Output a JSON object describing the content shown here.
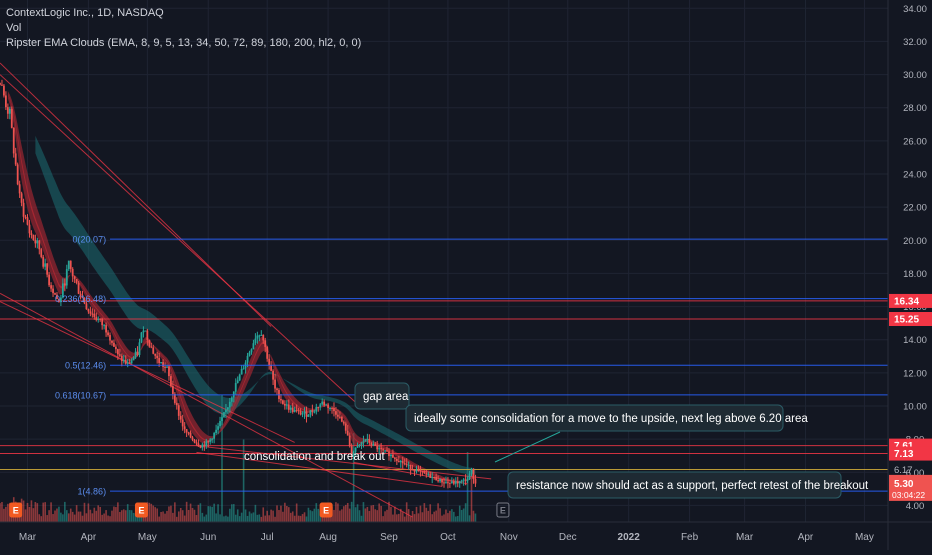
{
  "legend": {
    "symbol_line": "ContextLogic Inc., 1D, NASDAQ",
    "volume_label": "Vol",
    "indicator": "Ripster EMA Clouds (EMA, 8, 9, 5, 13, 34, 50, 72, 89, 180, 200, hl2, 0, 0)"
  },
  "colors": {
    "background": "#131722",
    "grid": "#1f2433",
    "text": "#b2b5be",
    "up": "#26a69a",
    "down": "#ef5350",
    "hline_red": "#f23645",
    "hline_blue": "#2962ff",
    "hline_yellow": "#d9b23a",
    "fib_label": "#5b8def",
    "cloud_fast": "#b22833",
    "cloud_slow": "#1c6e73"
  },
  "chart_data": {
    "type": "candlestick",
    "symbol": "ContextLogic Inc.",
    "interval": "1D",
    "exchange": "NASDAQ",
    "ylim": [
      3.0,
      34.5
    ],
    "y_ticks": [
      4,
      6,
      8,
      10,
      12,
      14,
      16,
      18,
      20,
      22,
      24,
      26,
      28,
      30,
      32,
      34
    ],
    "y_tick_labels": [
      "4.00",
      "6.00",
      "8.00",
      "10.00",
      "12.00",
      "14.00",
      "16.00",
      "18.00",
      "20.00",
      "22.00",
      "24.00",
      "26.00",
      "28.00",
      "30.00",
      "32.00",
      "34.00"
    ],
    "x_ticks": [
      {
        "label": "Mar",
        "day": 14
      },
      {
        "label": "Apr",
        "day": 45
      },
      {
        "label": "May",
        "day": 75
      },
      {
        "label": "Jun",
        "day": 106
      },
      {
        "label": "Jul",
        "day": 136
      },
      {
        "label": "Aug",
        "day": 167
      },
      {
        "label": "Sep",
        "day": 198
      },
      {
        "label": "Oct",
        "day": 228
      },
      {
        "label": "Nov",
        "day": 259
      },
      {
        "label": "Dec",
        "day": 289
      },
      {
        "label": "2022",
        "day": 320
      },
      {
        "label": "Feb",
        "day": 351
      },
      {
        "label": "Mar",
        "day": 379
      },
      {
        "label": "Apr",
        "day": 410
      },
      {
        "label": "May",
        "day": 440
      }
    ],
    "price_path": [
      [
        0,
        29.5
      ],
      [
        5,
        27.5
      ],
      [
        10,
        22.5
      ],
      [
        15,
        20.5
      ],
      [
        20,
        19.5
      ],
      [
        25,
        17.5
      ],
      [
        30,
        16.2
      ],
      [
        35,
        18.5
      ],
      [
        40,
        17.0
      ],
      [
        45,
        15.8
      ],
      [
        50,
        15.2
      ],
      [
        55,
        14.5
      ],
      [
        60,
        13.0
      ],
      [
        65,
        12.5
      ],
      [
        70,
        13.2
      ],
      [
        73,
        14.8
      ],
      [
        77,
        13.5
      ],
      [
        80,
        12.8
      ],
      [
        85,
        12.2
      ],
      [
        88,
        10.8
      ],
      [
        91,
        9.5
      ],
      [
        94,
        8.5
      ],
      [
        98,
        8.0
      ],
      [
        102,
        7.6
      ],
      [
        106,
        7.8
      ],
      [
        110,
        8.5
      ],
      [
        113,
        9.2
      ],
      [
        116,
        10.0
      ],
      [
        119,
        11.0
      ],
      [
        122,
        11.8
      ],
      [
        126,
        13.0
      ],
      [
        130,
        14.2
      ],
      [
        133,
        14.5
      ],
      [
        136,
        13.0
      ],
      [
        140,
        11.0
      ],
      [
        144,
        10.2
      ],
      [
        148,
        9.8
      ],
      [
        152,
        9.6
      ],
      [
        156,
        9.5
      ],
      [
        160,
        9.8
      ],
      [
        164,
        10.2
      ],
      [
        168,
        9.9
      ],
      [
        172,
        9.5
      ],
      [
        176,
        8.6
      ],
      [
        179,
        7.1
      ],
      [
        182,
        7.5
      ],
      [
        186,
        8.0
      ],
      [
        190,
        7.6
      ],
      [
        194,
        7.3
      ],
      [
        198,
        7.1
      ],
      [
        202,
        6.8
      ],
      [
        206,
        6.5
      ],
      [
        210,
        6.2
      ],
      [
        214,
        6.0
      ],
      [
        218,
        5.8
      ],
      [
        222,
        5.6
      ],
      [
        226,
        5.4
      ],
      [
        230,
        5.35
      ],
      [
        234,
        5.4
      ],
      [
        238,
        5.6
      ],
      [
        240,
        6.1
      ],
      [
        241,
        5.7
      ],
      [
        242,
        5.3
      ]
    ],
    "volume_spikes": [
      {
        "day": 113,
        "value": 1.0
      },
      {
        "day": 124,
        "value": 0.65
      },
      {
        "day": 180,
        "value": 0.7
      },
      {
        "day": 238,
        "value": 0.55
      },
      {
        "day": 240,
        "value": 0.4
      }
    ],
    "horizontal_lines": [
      {
        "price": 16.34,
        "label": "16.34",
        "color": "red",
        "tag": true
      },
      {
        "price": 15.25,
        "label": "15.25",
        "color": "red",
        "tag": true
      },
      {
        "price": 7.61,
        "label": "7.61",
        "color": "red",
        "tag": true
      },
      {
        "price": 7.13,
        "label": "7.13",
        "color": "red",
        "tag": true
      },
      {
        "price": 6.17,
        "label": "6.17",
        "color": "yellow",
        "tag": false
      }
    ],
    "fib_levels": [
      {
        "label": "0(20.07)",
        "price": 20.07
      },
      {
        "label": "0.236(16.48)",
        "price": 16.48
      },
      {
        "label": "0.5(12.46)",
        "price": 12.46
      },
      {
        "label": "0.618(10.67)",
        "price": 10.67
      },
      {
        "label": "1(4.86)",
        "price": 4.86
      }
    ],
    "trend_lines": [
      {
        "from": [
          0,
          30.7
        ],
        "to": [
          138,
          14.8
        ]
      },
      {
        "from": [
          0,
          30.0
        ],
        "to": [
          183,
          10.0
        ]
      },
      {
        "from": [
          0,
          16.8
        ],
        "to": [
          210,
          3.3
        ]
      },
      {
        "from": [
          0,
          16.3
        ],
        "to": [
          150,
          7.8
        ]
      },
      {
        "from": [
          100,
          7.6
        ],
        "to": [
          250,
          5.6
        ]
      },
      {
        "from": [
          100,
          7.2
        ],
        "to": [
          225,
          5.15
        ]
      },
      {
        "from": [
          180,
          6.6
        ],
        "to": [
          238,
          5.3
        ]
      }
    ],
    "last_price": {
      "value": "5.30",
      "countdown": "03:04:22"
    },
    "annotations": [
      {
        "text": "gap area",
        "style": "box"
      },
      {
        "text": "ideally some consolidation for a move to the upside, next leg above 6.20 area",
        "style": "box"
      },
      {
        "text": "consolidation and break out",
        "style": "plain"
      },
      {
        "text": "resistance now should act as a support, perfect retest of the breakout",
        "style": "box"
      }
    ],
    "events": [
      {
        "day": 8,
        "label": "E"
      },
      {
        "day": 72,
        "label": "E"
      },
      {
        "day": 166,
        "label": "E"
      },
      {
        "day": 256,
        "label": "E"
      }
    ]
  }
}
